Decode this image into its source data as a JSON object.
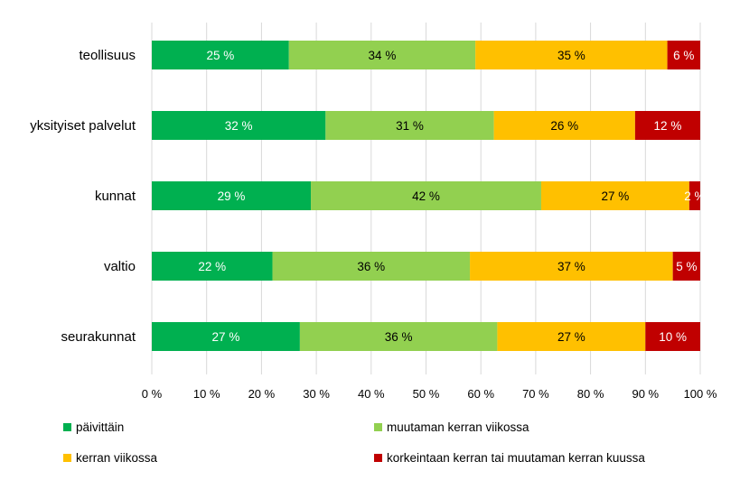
{
  "chart_data": {
    "type": "bar",
    "orientation": "horizontal",
    "stacked": "percent",
    "categories": [
      "teollisuus",
      "yksityiset palvelut",
      "kunnat",
      "valtio",
      "seurakunnat"
    ],
    "series": [
      {
        "name": "päivittäin",
        "color": "#00b050",
        "label_color": "#ffffff",
        "values": [
          25,
          32,
          29,
          22,
          27
        ],
        "labels": [
          "25 %",
          "32 %",
          "29 %",
          "22 %",
          "27 %"
        ]
      },
      {
        "name": "muutaman kerran viikossa",
        "color": "#92d050",
        "label_color": "#000000",
        "values": [
          34,
          31,
          42,
          36,
          36
        ],
        "labels": [
          "34 %",
          "31 %",
          "42 %",
          "36 %",
          "36 %"
        ]
      },
      {
        "name": "kerran viikossa",
        "color": "#ffc000",
        "label_color": "#000000",
        "values": [
          35,
          26,
          27,
          37,
          27
        ],
        "labels": [
          "35 %",
          "26 %",
          "27 %",
          "37 %",
          "27 %"
        ]
      },
      {
        "name": "korkeintaan kerran tai muutaman kerran kuussa",
        "color": "#c00000",
        "label_color": "#ffffff",
        "values": [
          6,
          12,
          2,
          5,
          10
        ],
        "labels": [
          "6 %",
          "12 %",
          "2 %",
          "5 %",
          "10 %"
        ]
      }
    ],
    "x_ticks": [
      "0 %",
      "10 %",
      "20 %",
      "30 %",
      "40 %",
      "50 %",
      "60 %",
      "70 %",
      "80 %",
      "90 %",
      "100 %"
    ],
    "xlim": [
      0,
      100
    ],
    "grid": true,
    "legend_position": "bottom"
  }
}
